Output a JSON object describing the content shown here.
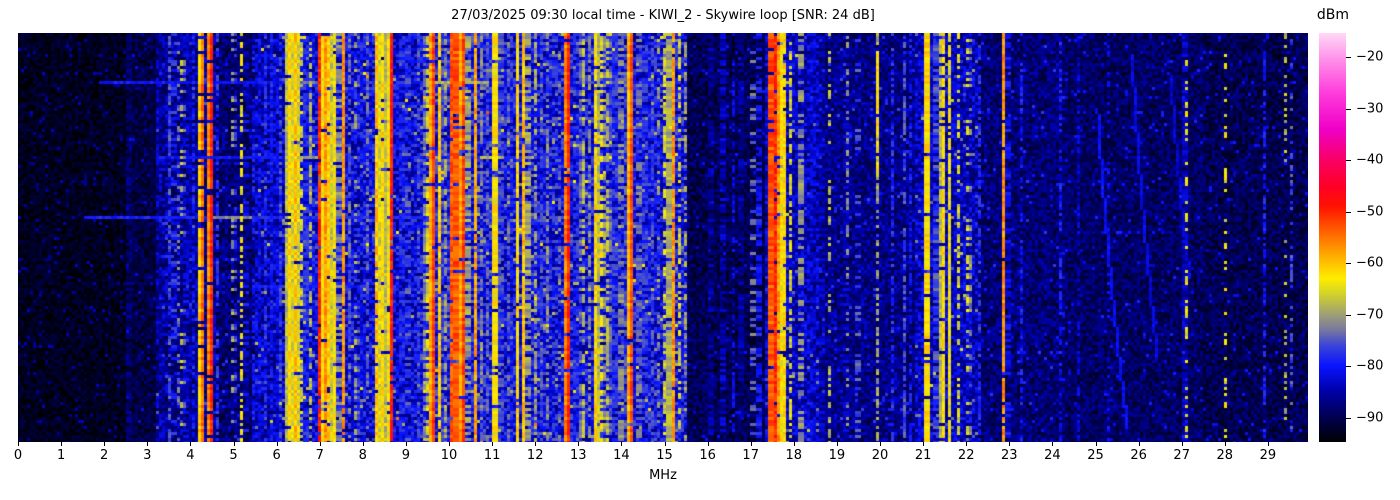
{
  "title": "27/03/2025 09:30 local time - KIWI_2 - Skywire loop [SNR: 24 dB]",
  "axes": {
    "x_label": "MHz",
    "x_ticks": [
      0,
      1,
      2,
      3,
      4,
      5,
      6,
      7,
      8,
      9,
      10,
      11,
      12,
      13,
      14,
      15,
      16,
      17,
      18,
      19,
      20,
      21,
      22,
      23,
      24,
      25,
      26,
      27,
      28,
      29
    ]
  },
  "colorbar": {
    "label": "dBm",
    "top_value": -15.3,
    "bottom_value": -94.7,
    "ticks": [
      {
        "value": -20,
        "label": "−20"
      },
      {
        "value": -30,
        "label": "−30"
      },
      {
        "value": -40,
        "label": "−40"
      },
      {
        "value": -50,
        "label": "−50"
      },
      {
        "value": -60,
        "label": "−60"
      },
      {
        "value": -70,
        "label": "−70"
      },
      {
        "value": -80,
        "label": "−80"
      },
      {
        "value": -90,
        "label": "−90"
      }
    ]
  },
  "chart_data": {
    "type": "heatmap",
    "subtype": "hf-radio-spectrogram-waterfall",
    "x_unit": "MHz",
    "value_unit": "dBm",
    "x_range": [
      0,
      29.93
    ],
    "value_range": [
      -95,
      -15
    ],
    "grid": false,
    "colormap_stops": [
      [
        -95,
        "#000000"
      ],
      [
        -90,
        "#000050"
      ],
      [
        -85,
        "#0000a8"
      ],
      [
        -80,
        "#0a14ff"
      ],
      [
        -76,
        "#3c46d8"
      ],
      [
        -73,
        "#7878a0"
      ],
      [
        -70,
        "#a0a078"
      ],
      [
        -66,
        "#d2d22a"
      ],
      [
        -63,
        "#ffee00"
      ],
      [
        -59,
        "#ffb400"
      ],
      [
        -54,
        "#ff6400"
      ],
      [
        -49,
        "#ff1400"
      ],
      [
        -45,
        "#ff0028"
      ],
      [
        -40,
        "#fa0064"
      ],
      [
        -34,
        "#f000c8"
      ],
      [
        -27,
        "#ff3cdc"
      ],
      [
        -20,
        "#ff96ea"
      ],
      [
        -15,
        "#ffdcf8"
      ]
    ],
    "noise_floor_regions": [
      [
        0.0,
        2.5,
        -93,
        2.5
      ],
      [
        2.5,
        3.2,
        -91,
        3
      ],
      [
        3.2,
        4.6,
        -86,
        5
      ],
      [
        4.6,
        5.5,
        -88,
        4.5
      ],
      [
        5.5,
        6.2,
        -84,
        5.5
      ],
      [
        6.2,
        9.3,
        -82,
        6
      ],
      [
        9.3,
        11.2,
        -80,
        6.5
      ],
      [
        11.2,
        15.5,
        -81,
        6.5
      ],
      [
        15.5,
        17.3,
        -90,
        3.5
      ],
      [
        17.3,
        18.6,
        -84,
        5
      ],
      [
        18.6,
        20.8,
        -87,
        4
      ],
      [
        20.8,
        22.3,
        -84,
        5
      ],
      [
        22.3,
        24.3,
        -88,
        4
      ],
      [
        24.3,
        27.5,
        -89,
        3.5
      ],
      [
        27.5,
        29.93,
        -90,
        3.5
      ]
    ],
    "signals": [
      [
        2.57,
        0.04,
        -82,
        "d"
      ],
      [
        3.33,
        0.04,
        -84,
        "d"
      ],
      [
        3.5,
        0.04,
        -76,
        "d"
      ],
      [
        3.62,
        0.05,
        -72,
        "p"
      ],
      [
        3.73,
        0.05,
        -74,
        "p"
      ],
      [
        3.81,
        0.05,
        -68,
        "p"
      ],
      [
        3.9,
        0.05,
        -76,
        "p"
      ],
      [
        4.05,
        0.04,
        -80,
        "d"
      ],
      [
        4.26,
        0.05,
        -55,
        "s"
      ],
      [
        4.47,
        0.04,
        -50,
        "s"
      ],
      [
        4.62,
        0.03,
        -78,
        "d"
      ],
      [
        5.0,
        0.04,
        -70,
        "p"
      ],
      [
        5.18,
        0.05,
        -64,
        "d"
      ],
      [
        5.3,
        0.04,
        -75,
        "p"
      ],
      [
        5.45,
        0.04,
        -80,
        "d"
      ],
      [
        5.62,
        0.03,
        -82,
        "d"
      ],
      [
        5.74,
        0.04,
        -78,
        "d"
      ],
      [
        5.9,
        0.04,
        -80,
        "d"
      ],
      [
        6.07,
        0.05,
        -76,
        "d"
      ],
      [
        6.3,
        0.08,
        -62,
        "s"
      ],
      [
        6.44,
        0.1,
        -60,
        "s"
      ],
      [
        6.56,
        0.05,
        -66,
        "d"
      ],
      [
        6.68,
        0.04,
        -72,
        "d"
      ],
      [
        6.8,
        0.04,
        -68,
        "d"
      ],
      [
        7.0,
        0.06,
        -50,
        "s"
      ],
      [
        7.12,
        0.07,
        -57,
        "s"
      ],
      [
        7.22,
        0.08,
        -61,
        "s"
      ],
      [
        7.33,
        0.06,
        -63,
        "s"
      ],
      [
        7.45,
        0.04,
        -66,
        "d"
      ],
      [
        7.57,
        0.04,
        -57,
        "s"
      ],
      [
        7.7,
        0.04,
        -74,
        "d"
      ],
      [
        7.85,
        0.04,
        -70,
        "p"
      ],
      [
        8.0,
        0.03,
        -78,
        "d"
      ],
      [
        8.12,
        0.04,
        -74,
        "d"
      ],
      [
        8.34,
        0.06,
        -60,
        "s"
      ],
      [
        8.46,
        0.1,
        -62,
        "s"
      ],
      [
        8.58,
        0.05,
        -64,
        "s"
      ],
      [
        8.68,
        0.04,
        -49,
        "s"
      ],
      [
        8.9,
        0.04,
        -73,
        "d"
      ],
      [
        9.05,
        0.05,
        -70,
        "p"
      ],
      [
        9.28,
        0.04,
        -76,
        "d"
      ],
      [
        9.48,
        0.04,
        -66,
        "d"
      ],
      [
        9.62,
        0.05,
        -52,
        "s"
      ],
      [
        9.78,
        0.05,
        -61,
        "s"
      ],
      [
        9.9,
        0.04,
        -70,
        "d"
      ],
      [
        10.06,
        0.05,
        -53,
        "s"
      ],
      [
        10.17,
        0.05,
        -47,
        "s"
      ],
      [
        10.32,
        0.05,
        -52,
        "s"
      ],
      [
        10.45,
        0.04,
        -64,
        "d"
      ],
      [
        10.6,
        0.04,
        -58,
        "s"
      ],
      [
        10.75,
        0.04,
        -72,
        "d"
      ],
      [
        10.9,
        0.04,
        -74,
        "d"
      ],
      [
        11.07,
        0.05,
        -57,
        "s"
      ],
      [
        11.2,
        0.04,
        -70,
        "d"
      ],
      [
        11.4,
        0.04,
        -74,
        "d"
      ],
      [
        11.6,
        0.05,
        -62,
        "s"
      ],
      [
        11.72,
        0.05,
        -60,
        "s"
      ],
      [
        11.83,
        0.05,
        -64,
        "d"
      ],
      [
        12.0,
        0.04,
        -70,
        "d"
      ],
      [
        12.15,
        0.04,
        -76,
        "d"
      ],
      [
        12.3,
        0.04,
        -72,
        "d"
      ],
      [
        12.45,
        0.05,
        -71,
        "p"
      ],
      [
        12.58,
        0.04,
        -73,
        "p"
      ],
      [
        12.75,
        0.05,
        -50,
        "s"
      ],
      [
        12.95,
        0.04,
        -74,
        "d"
      ],
      [
        13.1,
        0.04,
        -68,
        "d"
      ],
      [
        13.25,
        0.04,
        -72,
        "d"
      ],
      [
        13.42,
        0.06,
        -62,
        "s"
      ],
      [
        13.56,
        0.05,
        -64,
        "d"
      ],
      [
        13.7,
        0.04,
        -68,
        "d"
      ],
      [
        13.85,
        0.04,
        -72,
        "d"
      ],
      [
        14.0,
        0.04,
        -66,
        "d"
      ],
      [
        14.12,
        0.04,
        -70,
        "d"
      ],
      [
        14.22,
        0.05,
        -53,
        "s"
      ],
      [
        14.4,
        0.04,
        -68,
        "d"
      ],
      [
        14.55,
        0.04,
        -72,
        "d"
      ],
      [
        14.7,
        0.04,
        -76,
        "d"
      ],
      [
        14.85,
        0.04,
        -70,
        "p"
      ],
      [
        15.0,
        0.05,
        -66,
        "d"
      ],
      [
        15.1,
        0.05,
        -63,
        "s"
      ],
      [
        15.22,
        0.05,
        -57,
        "s"
      ],
      [
        15.35,
        0.04,
        -66,
        "d"
      ],
      [
        15.47,
        0.04,
        -70,
        "d"
      ],
      [
        16.08,
        0.04,
        -80,
        "d"
      ],
      [
        16.35,
        0.04,
        -78,
        "d"
      ],
      [
        16.6,
        0.03,
        -82,
        "d"
      ],
      [
        16.78,
        0.03,
        -80,
        "d"
      ],
      [
        17.05,
        0.04,
        -68,
        "p"
      ],
      [
        17.2,
        0.04,
        -74,
        "d"
      ],
      [
        17.47,
        0.05,
        -47,
        "s"
      ],
      [
        17.56,
        0.04,
        -50,
        "s"
      ],
      [
        17.66,
        0.05,
        -57,
        "s"
      ],
      [
        17.78,
        0.08,
        -62,
        "s"
      ],
      [
        17.92,
        0.04,
        -66,
        "d"
      ],
      [
        18.17,
        0.04,
        -65,
        "d"
      ],
      [
        18.45,
        0.04,
        -78,
        "d"
      ],
      [
        18.66,
        0.03,
        -78,
        "d"
      ],
      [
        18.82,
        0.04,
        -68,
        "p"
      ],
      [
        19.2,
        0.04,
        -78,
        "d"
      ],
      [
        19.25,
        0.04,
        -72,
        "p"
      ],
      [
        19.5,
        0.04,
        -70,
        "p"
      ],
      [
        19.93,
        0.04,
        -70,
        "d"
      ],
      [
        19.93,
        0.04,
        -63,
        "partial",
        0.03,
        0.35
      ],
      [
        20.3,
        0.03,
        -78,
        "d"
      ],
      [
        20.55,
        0.04,
        -76,
        "d"
      ],
      [
        20.7,
        0.03,
        -80,
        "d"
      ],
      [
        21.08,
        0.04,
        -56,
        "s"
      ],
      [
        21.3,
        0.04,
        -70,
        "d"
      ],
      [
        21.46,
        0.06,
        -62,
        "s"
      ],
      [
        21.62,
        0.05,
        -64,
        "s"
      ],
      [
        21.83,
        0.04,
        -66,
        "d"
      ],
      [
        22.05,
        0.04,
        -66,
        "p"
      ],
      [
        22.3,
        0.03,
        -78,
        "d"
      ],
      [
        22.87,
        0.03,
        -57,
        "s"
      ],
      [
        22.97,
        0.03,
        -75,
        "d"
      ],
      [
        23.3,
        0.03,
        -80,
        "d"
      ],
      [
        23.8,
        0.03,
        -82,
        "p"
      ],
      [
        24.2,
        0.03,
        -80,
        "d"
      ],
      [
        24.6,
        0.03,
        -83,
        "d"
      ],
      [
        25.3,
        0.03,
        -82,
        "p"
      ],
      [
        26.1,
        0.03,
        -84,
        "p"
      ],
      [
        27.08,
        0.07,
        -78,
        "s"
      ],
      [
        27.1,
        0.03,
        -64,
        "p"
      ],
      [
        28.0,
        0.04,
        -64,
        "p"
      ],
      [
        28.9,
        0.03,
        -80,
        "d"
      ],
      [
        29.4,
        0.04,
        -68,
        "p"
      ],
      [
        29.55,
        0.04,
        -76,
        "p"
      ]
    ],
    "broadband_streaks": [
      {
        "row": 0.115,
        "from": 1.9,
        "to": 15.35,
        "level": -80,
        "prob": 1,
        "segments": [
          {
            "from": 6.35,
            "to": 7.5,
            "level": -73
          },
          {
            "from": 9.5,
            "to": 10.9,
            "level": -69
          }
        ]
      },
      {
        "row": 0.3,
        "from": 3.3,
        "to": 15.4,
        "level": -80,
        "prob": 1,
        "segments": [
          {
            "from": 6.3,
            "to": 7.5,
            "level": -70
          },
          {
            "from": 10.7,
            "to": 11.3,
            "level": -68
          }
        ]
      },
      {
        "row": 0.45,
        "from": 1.55,
        "to": 10.5,
        "level": -79,
        "prob": 1,
        "segments": [
          {
            "from": 4.4,
            "to": 5.4,
            "level": -72
          }
        ]
      },
      {
        "row": 0.52,
        "from": 3.5,
        "to": 13.5,
        "level": -84,
        "prob": 1,
        "segments": [
          {
            "from": 6.3,
            "to": 7.5,
            "level": -76
          }
        ]
      },
      {
        "row": 0.615,
        "from": 5.4,
        "to": 7.8,
        "level": -79,
        "prob": 1,
        "segments": []
      },
      {
        "row": 0.78,
        "from": 23.4,
        "to": 25.2,
        "level": -66,
        "prob": 0.05,
        "segments": []
      }
    ],
    "ionosonde_sweeps": [
      [
        25.05,
        25.75,
        0.18,
        0.97,
        -81
      ],
      [
        25.85,
        26.45,
        0.05,
        0.8,
        -82
      ],
      [
        26.75,
        27.2,
        0.1,
        0.6,
        -83
      ],
      [
        12.15,
        12.65,
        0.35,
        0.88,
        -85
      ]
    ]
  }
}
